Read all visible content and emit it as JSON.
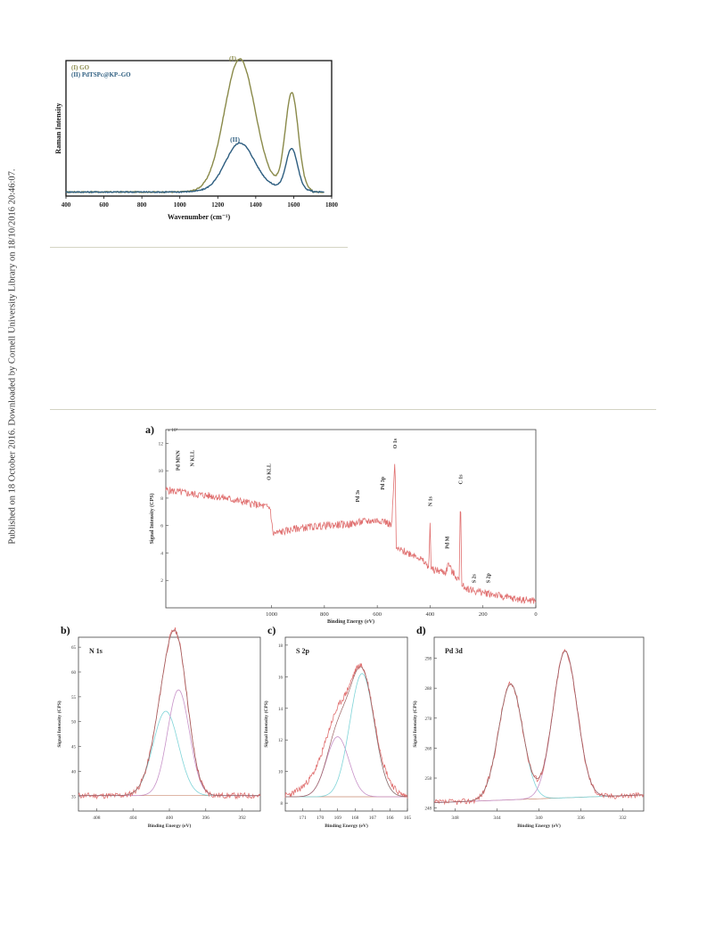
{
  "side_note": "Published on 18 October 2016. Downloaded by Cornell University Library on 18/10/2016 20:46:07.",
  "colors": {
    "go": "#8a8a4a",
    "pd": "#2e5e80",
    "xps": "#e07070",
    "fit": "#9a6060",
    "cyan": "#7fd4d8",
    "violet": "#c792c8",
    "baseline": "#c98a70"
  },
  "chart_data": [
    {
      "id": "raman",
      "type": "line",
      "title": "",
      "xlabel": "Wavenumber (cm⁻¹)",
      "ylabel": "Raman Intensity",
      "xlim": [
        400,
        1800
      ],
      "x_ticks": [
        "400",
        "600",
        "800",
        "1000",
        "1200",
        "1400",
        "1600",
        "1800"
      ],
      "legend": [
        "(I) GO",
        "(II) PdTSPc@KP–GO"
      ],
      "legend_position": "top-left",
      "annotations": [
        "(I)",
        "(II)"
      ],
      "series": [
        {
          "name": "(I) GO",
          "baseline": 0.03,
          "peaks": [
            {
              "x": 1315,
              "height": 0.95,
              "width": 80
            },
            {
              "x": 1590,
              "height": 0.71,
              "width": 34
            }
          ]
        },
        {
          "name": "(II) PdTSPc@KP–GO",
          "baseline": 0.03,
          "peaks": [
            {
              "x": 1315,
              "height": 0.33,
              "width": 75
            },
            {
              "x": 1590,
              "height": 0.3,
              "width": 30
            }
          ]
        }
      ]
    },
    {
      "id": "xps-survey",
      "type": "line",
      "panel_label": "a)",
      "xlabel": "Binding Energy (eV)",
      "ylabel": "Signal Intensity (CPS)",
      "y_multiplier": "x 10³",
      "xlim": [
        1400,
        0
      ],
      "ylim": [
        0,
        13
      ],
      "x_ticks": [
        "1000",
        "800",
        "600",
        "400",
        "200",
        "0"
      ],
      "y_ticks": [
        "2",
        "4",
        "6",
        "8",
        "10",
        "12"
      ],
      "peak_labels": [
        "Pd MNN",
        "N KLL",
        "O KLL",
        "Pd 3s",
        "Pd 3p",
        "O 1s",
        "N 1s",
        "C 1s",
        "Pd M",
        "S 2s",
        "S 2p"
      ],
      "points": [
        [
          1400,
          8.6
        ],
        [
          1300,
          8.3
        ],
        [
          1200,
          8.1
        ],
        [
          1100,
          7.7
        ],
        [
          1005,
          7.3
        ],
        [
          995,
          5.4
        ],
        [
          900,
          5.8
        ],
        [
          800,
          6.0
        ],
        [
          700,
          6.1
        ],
        [
          650,
          6.3
        ],
        [
          580,
          6.4
        ],
        [
          545,
          6.0
        ],
        [
          533,
          10.9
        ],
        [
          528,
          4.3
        ],
        [
          450,
          3.8
        ],
        [
          405,
          3.0
        ],
        [
          400,
          6.2
        ],
        [
          396,
          2.8
        ],
        [
          340,
          2.6
        ],
        [
          330,
          3.3
        ],
        [
          320,
          2.7
        ],
        [
          290,
          2.0
        ],
        [
          285,
          8.3
        ],
        [
          280,
          1.6
        ],
        [
          228,
          1.2
        ],
        [
          165,
          1.0
        ],
        [
          100,
          0.7
        ],
        [
          0,
          0.5
        ]
      ]
    },
    {
      "id": "xps-n1s",
      "type": "line",
      "panel_label": "b)",
      "title": "N 1s",
      "xlabel": "Binding Energy (eV)",
      "ylabel": "Signal Intensity (CPS)",
      "xlim": [
        410,
        390
      ],
      "ylim": [
        32,
        67
      ],
      "x_ticks": [
        "408",
        "404",
        "400",
        "396",
        "392"
      ],
      "y_ticks": [
        "35",
        "40",
        "45",
        "50",
        "55",
        "60",
        "65"
      ],
      "baseline": 35.1,
      "components": [
        {
          "center": 400.4,
          "height": 17.0,
          "width": 1.4
        },
        {
          "center": 399.0,
          "height": 21.3,
          "width": 1.2
        }
      ]
    },
    {
      "id": "xps-s2p",
      "type": "line",
      "panel_label": "c)",
      "title": "S 2p",
      "xlabel": "Binding Energy (eV)",
      "ylabel": "Signal Intensity (CPS)",
      "xlim": [
        172,
        165
      ],
      "ylim": [
        7.5,
        18.5
      ],
      "x_ticks": [
        "171",
        "170",
        "169",
        "168",
        "167",
        "166",
        "165"
      ],
      "y_ticks": [
        "8",
        "10",
        "12",
        "14",
        "16",
        "18"
      ],
      "baseline": 8.4,
      "components": [
        {
          "center": 169.0,
          "height": 3.8,
          "width": 0.65
        },
        {
          "center": 167.6,
          "height": 7.8,
          "width": 0.7
        }
      ]
    },
    {
      "id": "xps-pd3d",
      "type": "line",
      "panel_label": "d)",
      "title": "Pd 3d",
      "xlabel": "Binding Energy (eV)",
      "ylabel": "Signal Intensity (CPS)",
      "xlim": [
        350,
        330
      ],
      "ylim": [
        247,
        305
      ],
      "x_ticks": [
        "348",
        "344",
        "340",
        "336",
        "332"
      ],
      "y_ticks": [
        "248",
        "258",
        "268",
        "278",
        "288",
        "298"
      ],
      "baseline": [
        249.8,
        252.0
      ],
      "components": [
        {
          "center": 342.7,
          "height": 38.6,
          "width": 1.15
        },
        {
          "center": 337.5,
          "height": 49.0,
          "width": 1.15
        }
      ]
    }
  ]
}
